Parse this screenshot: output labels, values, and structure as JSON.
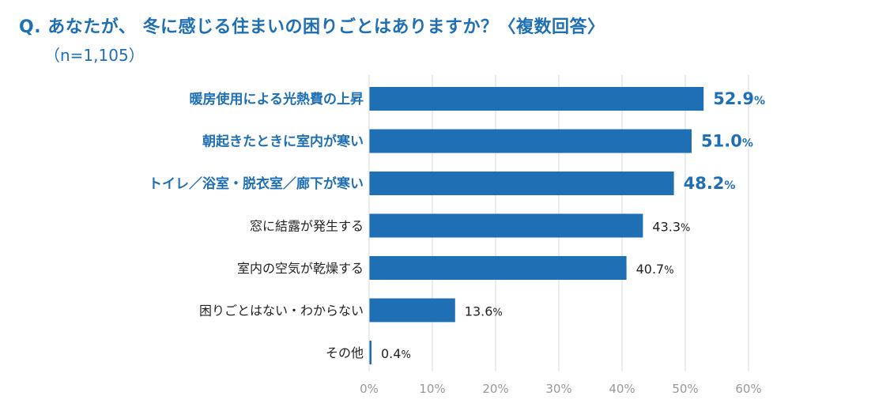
{
  "title": "Q. あなたが、 冬に感じる住まいの困りごとはありますか？〈複数回答〉",
  "subtitle": "（n=1,105）",
  "colors": {
    "bar": "#1f6fb5",
    "highlight_text": "#1f6fb5",
    "text": "#222222",
    "grid": "#d9d9d9",
    "tick": "#999999"
  },
  "chart_data": {
    "type": "bar",
    "orientation": "horizontal",
    "categories": [
      "暖房使用による光熱費の上昇",
      "朝起きたときに室内が寒い",
      "トイレ／浴室・脱衣室／廊下が寒い",
      "窓に結露が発生する",
      "室内の空気が乾燥する",
      "困りごとはない・わからない",
      "その他"
    ],
    "values": [
      52.9,
      51.0,
      48.2,
      43.3,
      40.7,
      13.6,
      0.4
    ],
    "value_labels": [
      "52.9",
      "51.0",
      "48.2",
      "43.3",
      "40.7",
      "13.6",
      "0.4"
    ],
    "unit": "%",
    "highlighted_count": 3,
    "xlim": [
      0,
      60
    ],
    "xticks": [
      "0%",
      "10%",
      "20%",
      "30%",
      "40%",
      "50%",
      "60%"
    ],
    "grid": true
  }
}
